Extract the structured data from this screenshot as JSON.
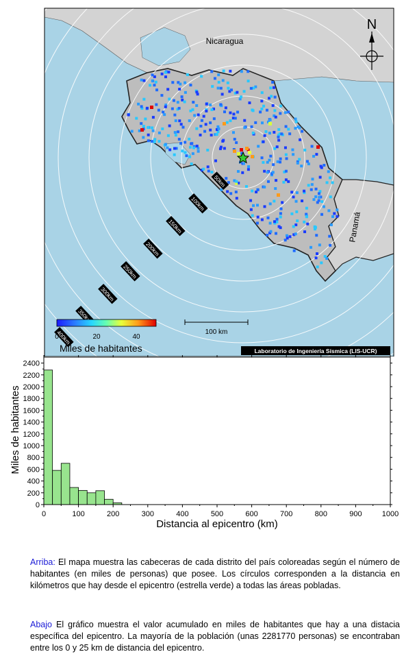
{
  "map": {
    "labels": {
      "nicaragua": "Nicaragua",
      "panama": "Panamá",
      "north": "N"
    },
    "ring_labels": [
      "50km",
      "100km",
      "150km",
      "200km",
      "250km",
      "300km",
      "350km",
      "400km"
    ],
    "scale_bar_label": "100 km",
    "colorbar": {
      "ticks": [
        "0",
        "20",
        "40"
      ],
      "title": "Miles de habitantes"
    },
    "credit": "Laboratorio de Ingeniería Sísmica (LIS-UCR)",
    "colors": {
      "ocean": "#a9d3e6",
      "land": "#d3d3d3",
      "costa_rica": "#bdbdbd",
      "epicenter": "#33cc33"
    }
  },
  "chart_data": {
    "type": "bar",
    "xlabel": "Distancia al epicentro (km)",
    "ylabel": "Miles de habitantes",
    "xlim": [
      0,
      1000
    ],
    "ylim": [
      0,
      2500
    ],
    "xticks": [
      0,
      100,
      200,
      300,
      400,
      500,
      600,
      700,
      800,
      900,
      1000
    ],
    "yticks": [
      0,
      200,
      400,
      600,
      800,
      1000,
      1200,
      1400,
      1600,
      1800,
      2000,
      2200,
      2400
    ],
    "bin_width": 25,
    "bins": [
      {
        "x0": 0,
        "value": 2282
      },
      {
        "x0": 25,
        "value": 580
      },
      {
        "x0": 50,
        "value": 700
      },
      {
        "x0": 75,
        "value": 290
      },
      {
        "x0": 100,
        "value": 240
      },
      {
        "x0": 125,
        "value": 200
      },
      {
        "x0": 150,
        "value": 235
      },
      {
        "x0": 175,
        "value": 90
      },
      {
        "x0": 200,
        "value": 30
      }
    ],
    "bar_color": "#98e48e"
  },
  "description": {
    "top_lead": "Arriba:",
    "top_text": " El mapa muestra las cabeceras de cada distrito del país coloreadas según el número de habitantes (en miles de personas) que posee. Los círculos corresponden a la distancia en kilómetros que hay desde el epicentro (estrella verde) a todas las áreas pobladas.",
    "bottom_lead": "Abajo",
    "bottom_text": " El gráfico muestra el valor acumulado en miles de habitantes que hay a una distacia específica del epicentro. La mayoría de la población (unas 2281770 personas) se encontraban entre los 0 y 25 km de distancia del epicentro."
  }
}
